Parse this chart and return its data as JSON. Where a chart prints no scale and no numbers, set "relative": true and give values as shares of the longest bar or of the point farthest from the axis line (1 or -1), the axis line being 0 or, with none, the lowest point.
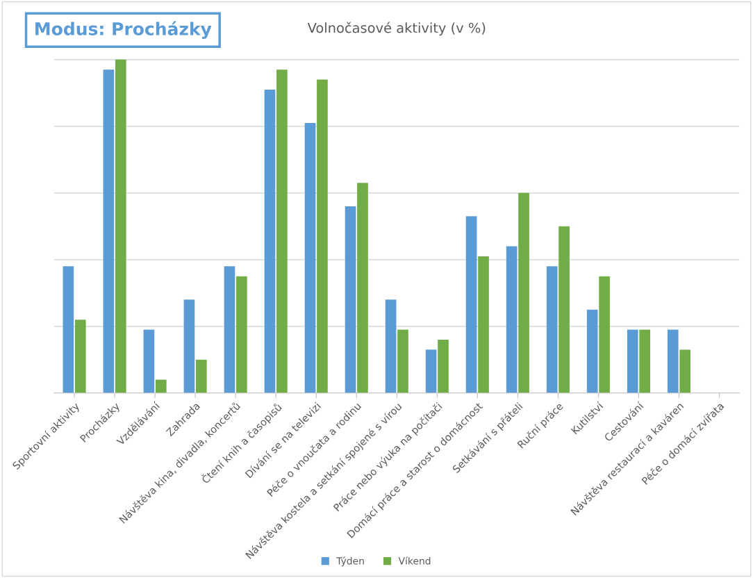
{
  "chart_data": {
    "type": "bar",
    "title": "Volnočasové aktivity (v %)",
    "relative": true,
    "grid": "y",
    "legend": "bottom",
    "annotations": [
      "Modus: Procházky"
    ],
    "categories": [
      "Sportovní aktivity",
      "Procházky",
      "Vzdělávání",
      "Zahrada",
      "Návštěva kina, divadla, koncertů",
      "Čtení knih a časopisů",
      "Dívání se na televizi",
      "Péče o vnoučata a rodinu",
      "Návštěva kostela a setkání spojené s vírou",
      "Práce nebo výuka na počítači",
      "Domácí práce a starost o domácnost",
      "Setkávání s přáteli",
      "Ruční práce",
      "Kutilství",
      "Cestování",
      "Návštěva restaurací a kaváren",
      "Péče o domácí zvířata"
    ],
    "series": [
      {
        "name": "Týden",
        "color": "#5b9bd5",
        "values": [
          0.38,
          0.97,
          0.19,
          0.28,
          0.38,
          0.91,
          0.81,
          0.56,
          0.28,
          0.13,
          0.53,
          0.44,
          0.38,
          0.25,
          0.19,
          0.19,
          0
        ]
      },
      {
        "name": "Víkend",
        "color": "#70ad47",
        "values": [
          0.22,
          1,
          0.04,
          0.1,
          0.35,
          0.97,
          0.94,
          0.63,
          0.19,
          0.16,
          0.41,
          0.6,
          0.5,
          0.35,
          0.19,
          0.13,
          0
        ]
      }
    ]
  }
}
